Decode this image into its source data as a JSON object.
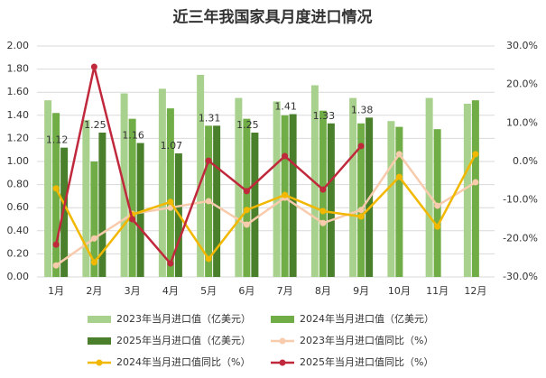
{
  "chart_data": {
    "type": "combo",
    "title": "近三年我国家具月度进口情况",
    "categories": [
      "1月",
      "2月",
      "3月",
      "4月",
      "5月",
      "6月",
      "7月",
      "8月",
      "9月",
      "10月",
      "11月",
      "12月"
    ],
    "ylim": [
      0,
      2
    ],
    "yticks": [
      {
        "value": 0,
        "label": "0.00"
      },
      {
        "value": 0.2,
        "label": "0.20"
      },
      {
        "value": 0.4,
        "label": "0.40"
      },
      {
        "value": 0.6,
        "label": "0.60"
      },
      {
        "value": 0.8,
        "label": "0.80"
      },
      {
        "value": 1,
        "label": "1.00"
      },
      {
        "value": 1.2,
        "label": "1.20"
      },
      {
        "value": 1.4,
        "label": "1.40"
      },
      {
        "value": 1.6,
        "label": "1.60"
      },
      {
        "value": 1.8,
        "label": "1.80"
      },
      {
        "value": 2,
        "label": "2.00"
      }
    ],
    "y2lim": [
      -30,
      30
    ],
    "y2ticks": [
      {
        "value": -30,
        "label": "-30.0%"
      },
      {
        "value": -20,
        "label": "-20.0%"
      },
      {
        "value": -10,
        "label": "-10.0%"
      },
      {
        "value": 0,
        "label": "0.0%"
      },
      {
        "value": 10,
        "label": "10.0%"
      },
      {
        "value": 20,
        "label": "20.0%"
      },
      {
        "value": 30,
        "label": "30.0%"
      }
    ],
    "series": [
      {
        "name": "2023年当月进口值（亿美元）",
        "type": "bar",
        "color": "#a9d18e",
        "values": [
          1.53,
          1.36,
          1.59,
          1.63,
          1.75,
          1.55,
          1.52,
          1.66,
          1.55,
          1.35,
          1.55,
          1.5
        ]
      },
      {
        "name": "2024年当月进口值（亿美元）",
        "type": "bar",
        "color": "#70ad47",
        "values": [
          1.42,
          1.0,
          1.37,
          1.46,
          1.31,
          1.37,
          1.4,
          1.44,
          1.33,
          1.3,
          1.28,
          1.53
        ]
      },
      {
        "name": "2025年当月进口值（亿美元）",
        "type": "bar",
        "color": "#4a7f2c",
        "values": [
          1.12,
          1.25,
          1.16,
          1.07,
          1.31,
          1.25,
          1.41,
          1.33,
          1.38,
          null,
          null,
          null
        ],
        "labels": true
      },
      {
        "name": "2023年当月进口值同比（%）",
        "type": "line",
        "axis": "y2",
        "color": "#f8cbad",
        "values": [
          -27,
          -20,
          -13.6,
          -12,
          -10.3,
          -16.4,
          -9.4,
          -16,
          -12.6,
          1.9,
          -11.5,
          -5.4
        ]
      },
      {
        "name": "2024年当月进口值同比（%）",
        "type": "line",
        "axis": "y2",
        "color": "#f2b800",
        "values": [
          -7,
          -26.2,
          -13.8,
          -10.5,
          -25.3,
          -12.6,
          -8.7,
          -12.9,
          -14.3,
          -4,
          -16.9,
          1.9
        ]
      },
      {
        "name": "2025年当月进口值同比（%）",
        "type": "line",
        "axis": "y2",
        "color": "#c0283c",
        "values": [
          -21.6,
          24.6,
          -15,
          -26.5,
          0.2,
          -7.7,
          1.4,
          -7.3,
          4,
          null,
          null,
          null
        ]
      }
    ]
  }
}
